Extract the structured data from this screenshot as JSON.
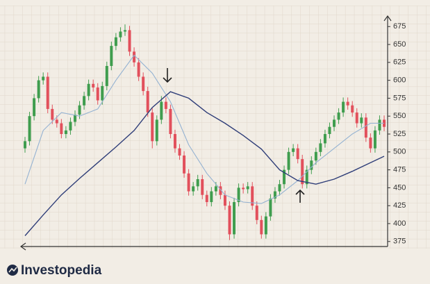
{
  "chart_data": {
    "type": "candlestick",
    "open": [
      505,
      515,
      550,
      575,
      600,
      605,
      560,
      545,
      540,
      525,
      530,
      542,
      552,
      565,
      578,
      595,
      590,
      572,
      592,
      620,
      648,
      660,
      668,
      670,
      640,
      625,
      605,
      585,
      555,
      515,
      545,
      570,
      560,
      525,
      505,
      495,
      470,
      445,
      452,
      462,
      440,
      430,
      445,
      452,
      440,
      425,
      385,
      430,
      450,
      448,
      452,
      425,
      405,
      385,
      410,
      435,
      445,
      455,
      475,
      500,
      505,
      490,
      455,
      475,
      488,
      500,
      512,
      525,
      535,
      545,
      555,
      570,
      565,
      555,
      540,
      548,
      520,
      505,
      530,
      545
    ],
    "high": [
      521,
      556,
      581,
      606,
      611,
      611,
      566,
      551,
      546,
      536,
      548,
      558,
      571,
      584,
      601,
      601,
      596,
      598,
      626,
      654,
      666,
      674,
      678,
      676,
      646,
      631,
      611,
      591,
      561,
      551,
      578,
      576,
      566,
      531,
      511,
      501,
      476,
      458,
      468,
      468,
      446,
      451,
      458,
      458,
      446,
      431,
      436,
      456,
      456,
      458,
      458,
      431,
      411,
      416,
      441,
      451,
      461,
      481,
      506,
      511,
      511,
      496,
      481,
      494,
      506,
      518,
      531,
      541,
      551,
      561,
      576,
      576,
      571,
      561,
      554,
      554,
      526,
      536,
      551,
      551
    ],
    "low": [
      499,
      509,
      544,
      569,
      594,
      554,
      539,
      534,
      519,
      519,
      524,
      536,
      546,
      559,
      572,
      584,
      566,
      566,
      586,
      614,
      642,
      654,
      662,
      634,
      619,
      599,
      579,
      549,
      505,
      509,
      539,
      554,
      519,
      499,
      489,
      464,
      439,
      439,
      446,
      434,
      424,
      424,
      439,
      434,
      419,
      377,
      379,
      424,
      442,
      442,
      419,
      399,
      379,
      379,
      404,
      429,
      439,
      449,
      469,
      494,
      484,
      449,
      449,
      469,
      482,
      494,
      506,
      519,
      529,
      539,
      549,
      559,
      549,
      534,
      534,
      514,
      499,
      499,
      524,
      529
    ],
    "close": [
      515,
      550,
      575,
      600,
      605,
      560,
      545,
      540,
      525,
      530,
      542,
      552,
      565,
      578,
      595,
      590,
      572,
      592,
      620,
      648,
      660,
      668,
      670,
      640,
      625,
      605,
      585,
      555,
      515,
      545,
      570,
      560,
      525,
      505,
      495,
      470,
      445,
      452,
      462,
      440,
      430,
      445,
      452,
      440,
      425,
      385,
      430,
      450,
      448,
      452,
      425,
      405,
      385,
      410,
      435,
      445,
      455,
      475,
      500,
      505,
      490,
      455,
      475,
      488,
      500,
      512,
      525,
      535,
      545,
      555,
      570,
      565,
      555,
      540,
      548,
      520,
      505,
      530,
      545,
      535
    ],
    "up_color": "#3f9d4e",
    "down_color": "#e2505c",
    "lines": [
      {
        "color": "#94b2d2",
        "x": [
          0,
          4,
          8,
          12,
          16,
          20,
          24,
          28,
          32,
          36,
          40,
          44,
          48,
          52,
          56,
          60,
          64,
          68,
          72,
          76,
          79
        ],
        "values": [
          455,
          530,
          555,
          550,
          560,
          600,
          635,
          610,
          570,
          510,
          470,
          440,
          430,
          428,
          440,
          460,
          485,
          505,
          525,
          540,
          540
        ]
      },
      {
        "color": "#2e3d78",
        "x": [
          0,
          4,
          8,
          12,
          16,
          20,
          24,
          28,
          32,
          36,
          40,
          44,
          48,
          52,
          56,
          60,
          64,
          68,
          72,
          76,
          79
        ],
        "values": [
          383,
          412,
          440,
          463,
          485,
          507,
          530,
          562,
          584,
          575,
          555,
          540,
          523,
          504,
          475,
          460,
          455,
          462,
          473,
          485,
          494
        ]
      }
    ],
    "ylim": [
      368,
      683
    ],
    "yticks": [
      375,
      400,
      425,
      450,
      475,
      500,
      525,
      550,
      575,
      600,
      625,
      650,
      675
    ]
  },
  "logo": "Investopedia"
}
